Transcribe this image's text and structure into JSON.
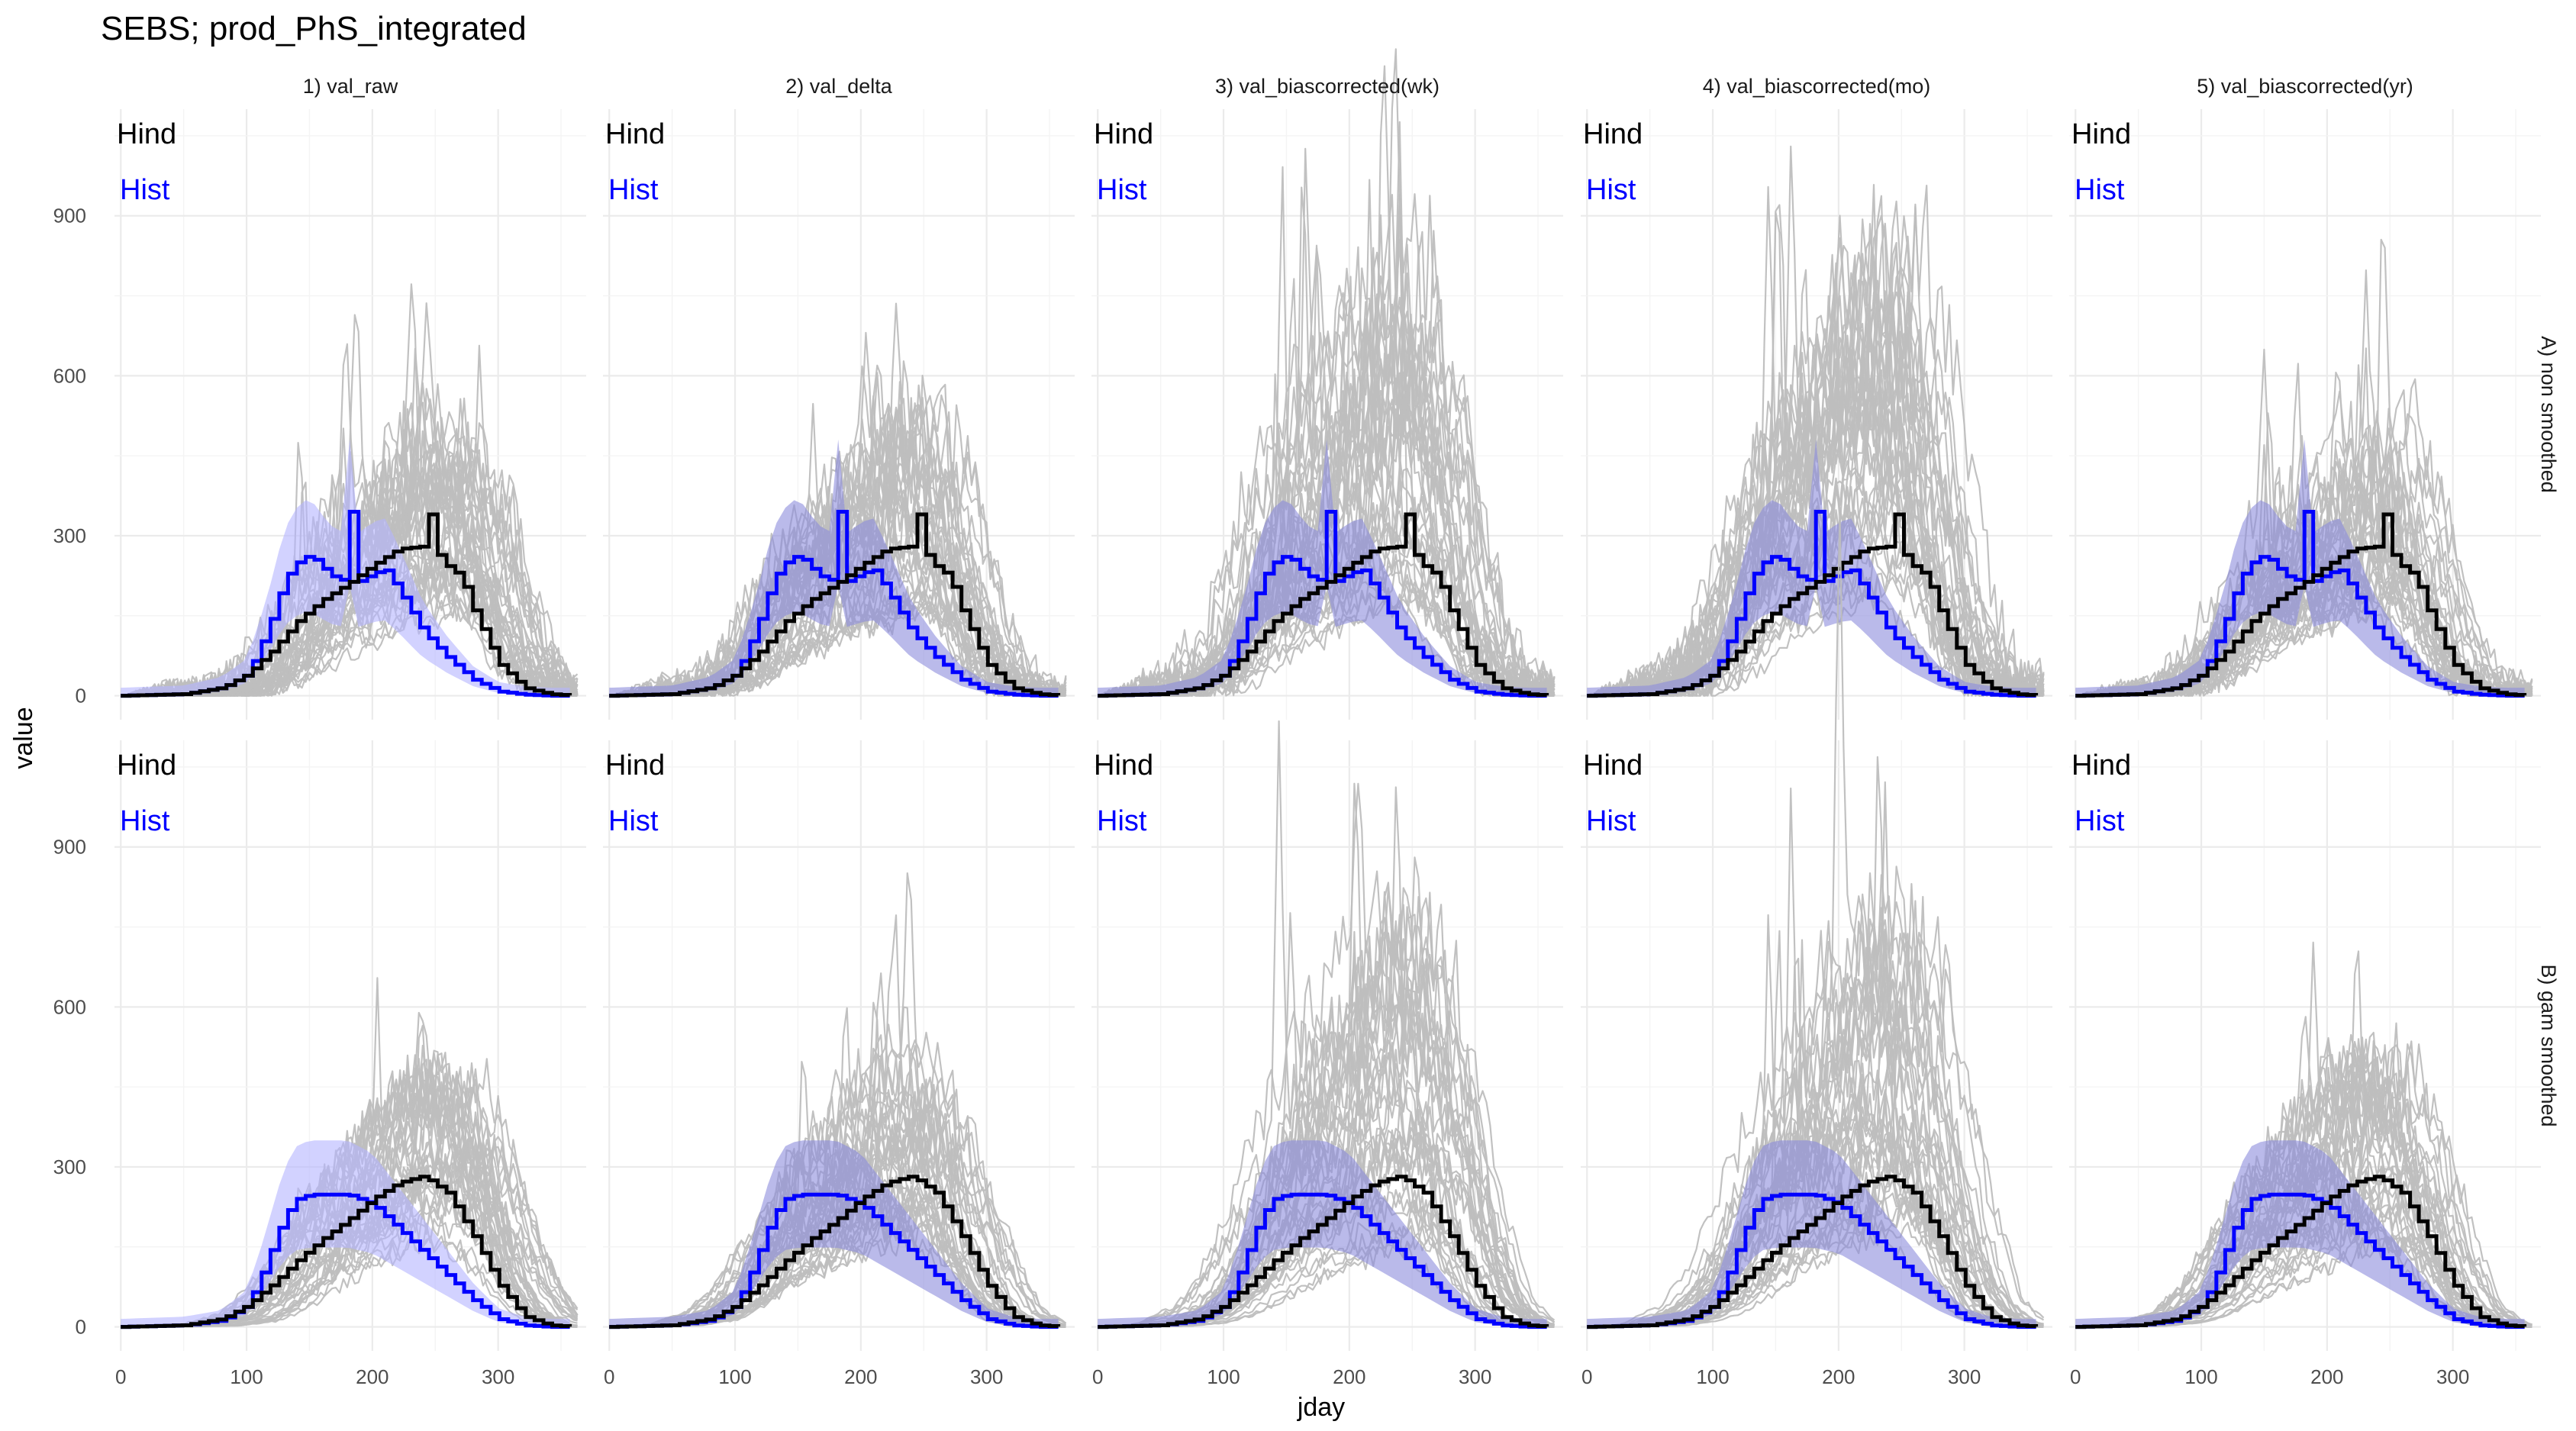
{
  "chart_data": {
    "type": "line",
    "title": "SEBS; prod_PhS_integrated",
    "xlabel": "jday",
    "ylabel": "value",
    "xlim": [
      -5,
      370
    ],
    "ylim": [
      -45,
      1100
    ],
    "x_ticks": [
      0,
      100,
      200,
      300
    ],
    "y_ticks": [
      0,
      300,
      600,
      900
    ],
    "x_tick_labels": [
      "0",
      "100",
      "200",
      "300"
    ],
    "y_tick_labels": [
      "0",
      "300",
      "600",
      "900"
    ],
    "grid": true,
    "facet_columns": [
      "1) val_raw",
      "2) val_delta",
      "3) val_biascorrected(wk)",
      "4) val_biascorrected(mo)",
      "5) val_biascorrected(yr)"
    ],
    "facet_rows": [
      "A) non smoothed",
      "B) gam smoothed"
    ],
    "panel_labels": {
      "hind": "Hind",
      "hist": "Hist"
    },
    "colors": {
      "hind": "#000000",
      "hist": "#0000ff",
      "hist_band": "#8c8cdc",
      "hist_band_raw": "#b4b4ff",
      "projections": "#bebebe",
      "grid": "#ebebeb"
    },
    "series": [
      {
        "name": "Hind",
        "facet_row": "A) non smoothed",
        "x": [
          0,
          50,
          80,
          100,
          120,
          140,
          160,
          180,
          200,
          220,
          240,
          245,
          250,
          260,
          270,
          275,
          280,
          300,
          320,
          340,
          360
        ],
        "values": [
          0,
          3,
          15,
          40,
          85,
          140,
          180,
          210,
          245,
          275,
          280,
          340,
          270,
          240,
          225,
          190,
          160,
          60,
          15,
          3,
          0
        ]
      },
      {
        "name": "Hist",
        "facet_row": "A) non smoothed",
        "x": [
          0,
          50,
          80,
          100,
          110,
          120,
          130,
          140,
          150,
          160,
          170,
          180,
          182,
          184,
          190,
          200,
          210,
          220,
          230,
          240,
          260,
          280,
          300,
          320,
          340,
          360
        ],
        "values": [
          0,
          3,
          15,
          40,
          90,
          150,
          220,
          250,
          265,
          240,
          220,
          215,
          345,
          215,
          215,
          230,
          235,
          200,
          160,
          120,
          70,
          30,
          8,
          2,
          0,
          0
        ]
      },
      {
        "name": "Hind",
        "facet_row": "B) gam smoothed",
        "x": [
          0,
          50,
          80,
          100,
          120,
          140,
          160,
          180,
          200,
          220,
          240,
          260,
          280,
          300,
          320,
          340,
          360
        ],
        "values": [
          0,
          3,
          15,
          40,
          80,
          125,
          165,
          200,
          240,
          270,
          283,
          250,
          170,
          80,
          20,
          3,
          0
        ]
      },
      {
        "name": "Hist",
        "facet_row": "B) gam smoothed",
        "x": [
          0,
          50,
          80,
          100,
          110,
          120,
          130,
          140,
          150,
          160,
          180,
          200,
          220,
          240,
          260,
          280,
          300,
          320,
          340,
          360
        ],
        "values": [
          0,
          3,
          12,
          40,
          90,
          150,
          210,
          240,
          248,
          248,
          248,
          230,
          185,
          140,
          95,
          50,
          15,
          3,
          0,
          0
        ]
      }
    ]
  }
}
